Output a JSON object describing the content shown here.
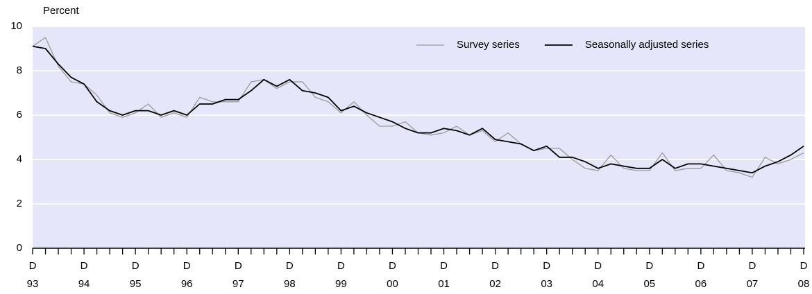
{
  "chart_data": {
    "type": "line",
    "y_label": "Percent",
    "categories": [
      "D 93",
      null,
      null,
      null,
      "D 94",
      null,
      null,
      null,
      "D 95",
      null,
      null,
      null,
      "D 96",
      null,
      null,
      null,
      "D 97",
      null,
      null,
      null,
      "D 98",
      null,
      null,
      null,
      "D 99",
      null,
      null,
      null,
      "D 00",
      null,
      null,
      null,
      "D 01",
      null,
      null,
      null,
      "D 02",
      null,
      null,
      null,
      "D 03",
      null,
      null,
      null,
      "D 04",
      null,
      null,
      null,
      "D 05",
      null,
      null,
      null,
      "D 06",
      null,
      null,
      null,
      "D 07",
      null,
      null,
      null,
      "D 08"
    ],
    "series": [
      {
        "name": "Survey series",
        "color": "#9a9a9a",
        "width": 1.3,
        "values": [
          9.1,
          9.5,
          8.2,
          7.5,
          7.4,
          6.9,
          6.1,
          5.9,
          6.1,
          6.5,
          5.9,
          6.1,
          5.9,
          6.8,
          6.6,
          6.6,
          6.6,
          7.5,
          7.6,
          7.2,
          7.5,
          7.5,
          6.8,
          6.6,
          6.1,
          6.6,
          6.0,
          5.5,
          5.5,
          5.7,
          5.2,
          5.1,
          5.2,
          5.5,
          5.1,
          5.3,
          4.8,
          5.2,
          4.7,
          4.4,
          4.5,
          4.5,
          4.0,
          3.6,
          3.5,
          4.2,
          3.6,
          3.5,
          3.5,
          4.3,
          3.5,
          3.6,
          3.6,
          4.2,
          3.5,
          3.4,
          3.2,
          4.1,
          3.8,
          4.0,
          4.3
        ]
      },
      {
        "name": "Seasonally adjusted series",
        "color": "#000000",
        "width": 1.8,
        "values": [
          9.1,
          9.0,
          8.3,
          7.7,
          7.4,
          6.6,
          6.2,
          6.0,
          6.2,
          6.2,
          6.0,
          6.2,
          6.0,
          6.5,
          6.5,
          6.7,
          6.7,
          7.1,
          7.6,
          7.3,
          7.6,
          7.1,
          7.0,
          6.8,
          6.2,
          6.4,
          6.1,
          5.9,
          5.7,
          5.4,
          5.2,
          5.2,
          5.4,
          5.3,
          5.1,
          5.4,
          4.9,
          4.8,
          4.7,
          4.4,
          4.6,
          4.1,
          4.1,
          3.9,
          3.6,
          3.8,
          3.7,
          3.6,
          3.6,
          4.0,
          3.6,
          3.8,
          3.8,
          3.7,
          3.6,
          3.5,
          3.4,
          3.7,
          3.9,
          4.2,
          4.6
        ]
      }
    ],
    "ylim": [
      0,
      10
    ],
    "yticks": [
      0,
      2,
      4,
      6,
      8,
      10
    ],
    "grid": true,
    "legend": "upper right",
    "background": "#e6e6fa"
  }
}
